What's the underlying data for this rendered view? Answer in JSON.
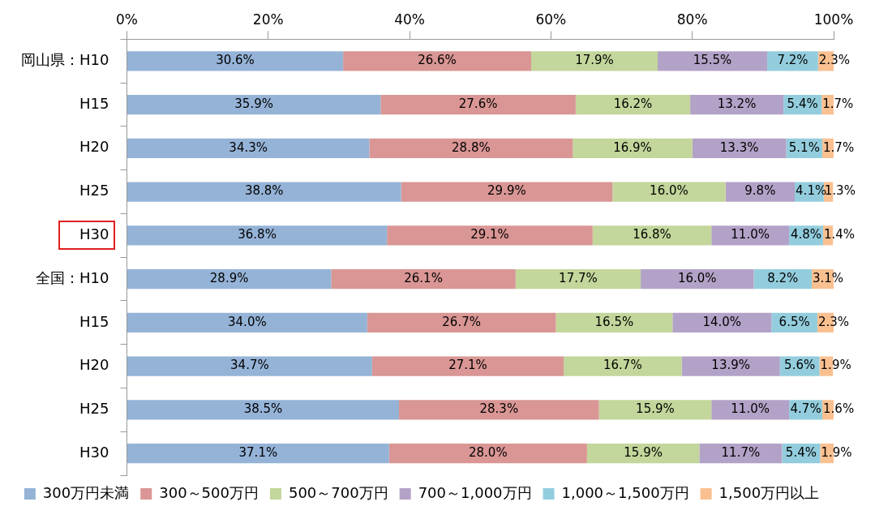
{
  "chart_data": {
    "type": "bar",
    "orientation": "horizontal",
    "stacked": true,
    "categories": [
      "岡山県：H10",
      "H15",
      "H20",
      "H25",
      "H30",
      "全国：H10",
      "H15",
      "H20",
      "H25",
      "H30"
    ],
    "xlim": [
      0,
      100
    ],
    "xticks": [
      {
        "value": 0,
        "label": "0%"
      },
      {
        "value": 20,
        "label": "20%"
      },
      {
        "value": 40,
        "label": "40%"
      },
      {
        "value": 60,
        "label": "60%"
      },
      {
        "value": 80,
        "label": "80%"
      },
      {
        "value": 100,
        "label": "100%"
      }
    ],
    "grid": false,
    "legend": "bottom",
    "series": [
      {
        "name": "300万円未満",
        "color": "#95b3d7",
        "values": [
          30.6,
          35.9,
          34.3,
          38.8,
          36.8,
          28.9,
          34.0,
          34.7,
          38.5,
          37.1
        ],
        "value_labels": [
          "30.6%",
          "35.9%",
          "34.3%",
          "38.8%",
          "36.8%",
          "28.9%",
          "34.0%",
          "34.7%",
          "38.5%",
          "37.1%"
        ]
      },
      {
        "name": "300～500万円",
        "color": "#d99694",
        "values": [
          26.6,
          27.6,
          28.8,
          29.9,
          29.1,
          26.1,
          26.7,
          27.1,
          28.3,
          28.0
        ],
        "value_labels": [
          "26.6%",
          "27.6%",
          "28.8%",
          "29.9%",
          "29.1%",
          "26.1%",
          "26.7%",
          "27.1%",
          "28.3%",
          "28.0%"
        ]
      },
      {
        "name": "500～700万円",
        "color": "#c3d69b",
        "values": [
          17.9,
          16.2,
          16.9,
          16.0,
          16.8,
          17.7,
          16.5,
          16.7,
          15.9,
          15.9
        ],
        "value_labels": [
          "17.9%",
          "16.2%",
          "16.9%",
          "16.0%",
          "16.8%",
          "17.7%",
          "16.5%",
          "16.7%",
          "15.9%",
          "15.9%"
        ]
      },
      {
        "name": "700～1,000万円",
        "color": "#b3a2c7",
        "values": [
          15.5,
          13.2,
          13.3,
          9.8,
          11.0,
          16.0,
          14.0,
          13.9,
          11.0,
          11.7
        ],
        "value_labels": [
          "15.5%",
          "13.2%",
          "13.3%",
          "9.8%",
          "11.0%",
          "16.0%",
          "14.0%",
          "13.9%",
          "11.0%",
          "11.7%"
        ]
      },
      {
        "name": "1,000～1,500万円",
        "color": "#93cddd",
        "values": [
          7.2,
          5.4,
          5.1,
          4.1,
          4.8,
          8.2,
          6.5,
          5.6,
          4.7,
          5.4
        ],
        "value_labels": [
          "7.2%",
          "5.4%",
          "5.1%",
          "4.1%",
          "4.8%",
          "8.2%",
          "6.5%",
          "5.6%",
          "4.7%",
          "5.4%"
        ]
      },
      {
        "name": "1,500万円以上",
        "color": "#fac090",
        "values": [
          2.3,
          1.7,
          1.7,
          1.3,
          1.4,
          3.1,
          2.3,
          1.9,
          1.6,
          1.9
        ],
        "value_labels": [
          "2.3%",
          "1.7%",
          "1.7%",
          "1.3%",
          "1.4%",
          "3.1%",
          "2.3%",
          "1.9%",
          "1.6%",
          "1.9%"
        ]
      }
    ]
  }
}
